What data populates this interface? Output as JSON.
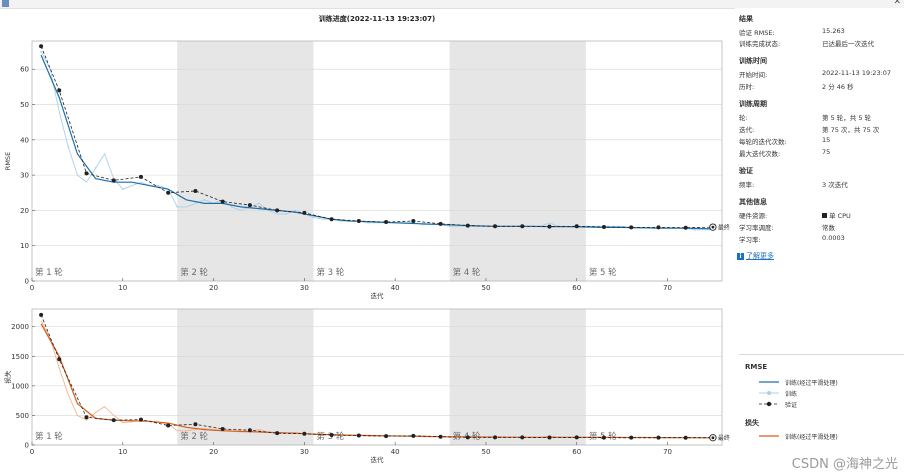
{
  "window": {
    "title": ""
  },
  "colors": {
    "train_line": "#2b7cc9",
    "train_smooth": "#1f6fa8",
    "train_raw": "#a8d0ec",
    "validation": "#222222",
    "loss_smooth": "#d95f1a",
    "loss_raw": "#f2b48c",
    "epoch_band": "#e6e6e6"
  },
  "sidepanel": {
    "results": {
      "title": "结果",
      "rows": [
        {
          "label": "验证 RMSE:",
          "value": "15.263"
        },
        {
          "label": "训练完成状态:",
          "value": "已达最后一次迭代"
        }
      ]
    },
    "time": {
      "title": "训练时间",
      "rows": [
        {
          "label": "开始时间:",
          "value": "2022-11-13 19:23:07"
        },
        {
          "label": "历时:",
          "value": "2 分 46 秒"
        }
      ]
    },
    "cycle": {
      "title": "训练周期",
      "rows": [
        {
          "label": "轮:",
          "value": "第 5 轮，共 5 轮"
        },
        {
          "label": "迭代:",
          "value": "第 75 次，共 75 次"
        },
        {
          "label": "每轮的迭代次数:",
          "value": "15"
        },
        {
          "label": "最大迭代次数:",
          "value": "75"
        }
      ]
    },
    "validation": {
      "title": "验证",
      "rows": [
        {
          "label": "频率:",
          "value": "3 次迭代"
        }
      ]
    },
    "other": {
      "title": "其他信息",
      "rows": [
        {
          "label": "硬件资源:",
          "value": "单 CPU"
        },
        {
          "label": "学习率调度:",
          "value": "常数"
        },
        {
          "label": "学习率:",
          "value": "0.0003"
        }
      ]
    },
    "help_link": "了解更多"
  },
  "legend": {
    "rmse_title": "RMSE",
    "rmse_items": [
      "训练(经过平滑处理)",
      "训练",
      "验证"
    ],
    "loss_title": "损失",
    "loss_items": [
      "训练(经过平滑处理)"
    ]
  },
  "watermark": "CSDN @海神之光",
  "chart_data": [
    {
      "type": "line",
      "title": "训练进度(2022-11-13 19:23:07)",
      "xlabel": "迭代",
      "ylabel": "RMSE",
      "xlim": [
        0,
        76
      ],
      "ylim": [
        0,
        68
      ],
      "xticks": [
        0,
        10,
        20,
        30,
        40,
        50,
        60,
        70
      ],
      "yticks": [
        0,
        10,
        20,
        30,
        40,
        50,
        60
      ],
      "grid": true,
      "epochs": [
        {
          "label": "第 1 轮",
          "start": 0,
          "end": 16,
          "shaded": false
        },
        {
          "label": "第 2 轮",
          "start": 16,
          "end": 31,
          "shaded": true
        },
        {
          "label": "第 3 轮",
          "start": 31,
          "end": 46,
          "shaded": false
        },
        {
          "label": "第 4 轮",
          "start": 46,
          "end": 61,
          "shaded": true
        },
        {
          "label": "第 5 轮",
          "start": 61,
          "end": 76,
          "shaded": false
        }
      ],
      "final_label": "最终",
      "series": [
        {
          "name": "训练",
          "x": [
            1,
            2,
            3,
            4,
            5,
            6,
            7,
            8,
            9,
            10,
            11,
            12,
            13,
            14,
            15,
            16,
            17,
            18,
            19,
            20,
            21,
            22,
            23,
            24,
            25,
            26,
            27,
            28,
            29,
            30,
            31,
            32,
            33,
            34,
            35,
            36,
            37,
            38,
            39,
            40,
            41,
            42,
            43,
            44,
            45,
            46,
            47,
            48,
            49,
            50,
            51,
            52,
            53,
            54,
            55,
            56,
            57,
            58,
            59,
            60,
            61,
            62,
            63,
            64,
            65,
            66,
            67,
            68,
            69,
            70,
            71,
            72,
            73,
            74,
            75
          ],
          "values": [
            65,
            60,
            48,
            38,
            30,
            28,
            32,
            36,
            29,
            26,
            27,
            28,
            27,
            27,
            26,
            21,
            21,
            22,
            23,
            22,
            23,
            21,
            20,
            21,
            22,
            20,
            19,
            19,
            20,
            19,
            18,
            17.5,
            17.5,
            17,
            17,
            17,
            16.5,
            16.5,
            16.5,
            16.5,
            16.5,
            16.5,
            16,
            16,
            16,
            15.5,
            15.5,
            15.5,
            15.5,
            15.5,
            15.5,
            15.5,
            15.5,
            15.5,
            15.5,
            15.5,
            16.5,
            15.5,
            15.5,
            15.5,
            15.5,
            15.5,
            15.5,
            15.5,
            15.5,
            15,
            15,
            15,
            15,
            15,
            15,
            15,
            14.5,
            14.5,
            14.5
          ]
        },
        {
          "name": "训练(经过平滑处理)",
          "x": [
            1,
            3,
            5,
            7,
            9,
            11,
            13,
            15,
            17,
            19,
            21,
            23,
            25,
            27,
            29,
            31,
            33,
            35,
            37,
            39,
            41,
            43,
            45,
            47,
            49,
            51,
            53,
            55,
            57,
            59,
            61,
            63,
            65,
            67,
            69,
            71,
            73,
            75
          ],
          "values": [
            64,
            52,
            36,
            29,
            28,
            28,
            27,
            26,
            23,
            22,
            22,
            21,
            20.5,
            20,
            19.5,
            18.5,
            17.5,
            17,
            16.8,
            16.6,
            16.4,
            16.2,
            16,
            15.8,
            15.6,
            15.5,
            15.5,
            15.5,
            15.4,
            15.4,
            15.3,
            15.2,
            15.2,
            15.1,
            15,
            15,
            14.9,
            14.8
          ]
        },
        {
          "name": "验证",
          "x": [
            1,
            3,
            6,
            9,
            12,
            15,
            18,
            21,
            24,
            27,
            30,
            33,
            36,
            39,
            42,
            45,
            48,
            51,
            54,
            57,
            60,
            63,
            66,
            69,
            72,
            75
          ],
          "values": [
            66.5,
            54,
            30.5,
            28.5,
            29.5,
            25,
            25.5,
            22.5,
            21.5,
            20,
            19.3,
            17.5,
            17,
            16.7,
            17,
            16.2,
            15.7,
            15.5,
            15.5,
            15.4,
            15.5,
            15.3,
            15.2,
            15.2,
            15.1,
            15.26
          ]
        }
      ]
    },
    {
      "type": "line",
      "title": "",
      "xlabel": "迭代",
      "ylabel": "损失",
      "xlim": [
        0,
        76
      ],
      "ylim": [
        0,
        2300
      ],
      "xticks": [
        0,
        10,
        20,
        30,
        40,
        50,
        60,
        70
      ],
      "yticks": [
        0,
        500,
        1000,
        1500,
        2000
      ],
      "grid": true,
      "epochs": [
        {
          "label": "第 1 轮",
          "start": 0,
          "end": 16,
          "shaded": false
        },
        {
          "label": "第 2 轮",
          "start": 16,
          "end": 31,
          "shaded": true
        },
        {
          "label": "第 3 轮",
          "start": 31,
          "end": 46,
          "shaded": false
        },
        {
          "label": "第 4 轮",
          "start": 46,
          "end": 61,
          "shaded": true
        },
        {
          "label": "第 5 轮",
          "start": 61,
          "end": 76,
          "shaded": false
        }
      ],
      "final_label": "最终",
      "series": [
        {
          "name": "训练",
          "x": [
            1,
            2,
            3,
            4,
            5,
            6,
            7,
            8,
            9,
            10,
            11,
            12,
            13,
            14,
            15,
            16,
            17,
            18,
            19,
            20,
            21,
            22,
            23,
            24,
            25,
            26,
            27,
            28,
            29,
            30,
            31,
            32,
            33,
            34,
            35,
            36,
            37,
            38,
            39,
            40,
            41,
            42,
            43,
            44,
            45,
            46,
            47,
            48,
            49,
            50,
            51,
            52,
            53,
            54,
            55,
            56,
            57,
            58,
            59,
            60,
            61,
            62,
            63,
            64,
            65,
            66,
            67,
            68,
            69,
            70,
            71,
            72,
            73,
            74,
            75
          ],
          "values": [
            2100,
            1800,
            1300,
            850,
            500,
            420,
            550,
            650,
            500,
            380,
            390,
            420,
            400,
            380,
            360,
            240,
            240,
            260,
            280,
            260,
            280,
            240,
            220,
            230,
            260,
            220,
            200,
            200,
            210,
            190,
            180,
            170,
            170,
            160,
            160,
            160,
            150,
            150,
            150,
            150,
            150,
            150,
            140,
            140,
            140,
            130,
            130,
            130,
            130,
            130,
            130,
            130,
            130,
            130,
            130,
            130,
            150,
            130,
            130,
            130,
            130,
            130,
            130,
            130,
            130,
            125,
            125,
            125,
            125,
            125,
            125,
            125,
            120,
            120,
            120
          ]
        },
        {
          "name": "训练(经过平滑处理)",
          "x": [
            1,
            3,
            5,
            7,
            9,
            11,
            13,
            15,
            17,
            19,
            21,
            23,
            25,
            27,
            29,
            31,
            33,
            35,
            37,
            39,
            41,
            43,
            45,
            47,
            49,
            51,
            53,
            55,
            57,
            59,
            61,
            63,
            65,
            67,
            69,
            71,
            73,
            75
          ],
          "values": [
            2050,
            1500,
            700,
            450,
            420,
            410,
            400,
            370,
            300,
            260,
            240,
            230,
            220,
            210,
            200,
            185,
            175,
            165,
            160,
            155,
            150,
            145,
            140,
            138,
            135,
            133,
            132,
            131,
            130,
            130,
            129,
            128,
            127,
            126,
            125,
            124,
            123,
            122
          ]
        },
        {
          "name": "验证",
          "x": [
            1,
            3,
            6,
            9,
            12,
            15,
            18,
            21,
            24,
            27,
            30,
            33,
            36,
            39,
            42,
            45,
            48,
            51,
            54,
            57,
            60,
            63,
            66,
            69,
            72,
            75
          ],
          "values": [
            2200,
            1450,
            470,
            420,
            430,
            330,
            350,
            270,
            250,
            200,
            190,
            170,
            160,
            150,
            155,
            140,
            130,
            130,
            128,
            127,
            128,
            125,
            124,
            124,
            123,
            123
          ]
        }
      ]
    }
  ]
}
